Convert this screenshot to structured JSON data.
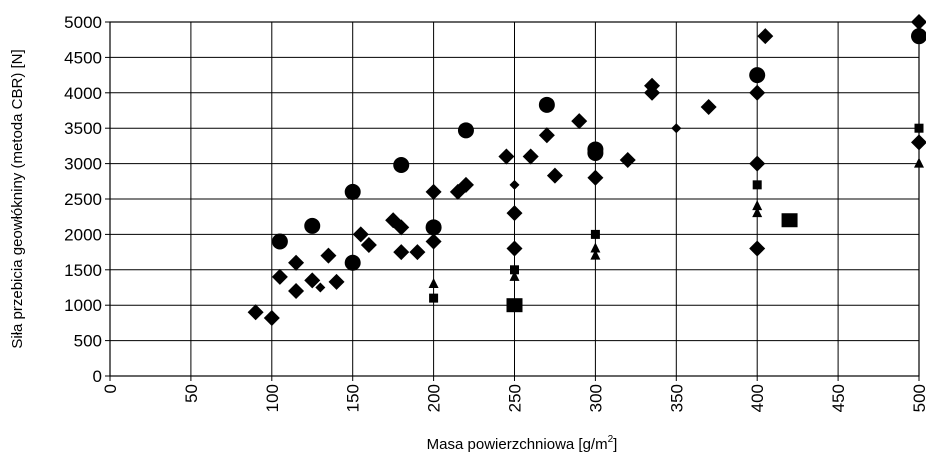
{
  "chart_data": {
    "type": "scatter",
    "title": "",
    "xlabel": "Masa powierzchniowa [g/m",
    "xlabel_sup": "2",
    "xlabel_end": "]",
    "ylabel": "Siła przebicia geowłókniny (metoda CBR) [N]",
    "xlim": [
      0,
      500
    ],
    "ylim": [
      0,
      5000
    ],
    "x_ticks": [
      0,
      50,
      100,
      150,
      200,
      250,
      300,
      350,
      400,
      450,
      500
    ],
    "y_ticks": [
      0,
      500,
      1000,
      1500,
      2000,
      2500,
      3000,
      3500,
      4000,
      4500,
      5000
    ],
    "grid": true,
    "legend": "none",
    "series": [
      {
        "marker": "diamond",
        "points": [
          [
            90,
            900
          ],
          [
            100,
            820
          ],
          [
            105,
            1400
          ],
          [
            115,
            1200
          ],
          [
            115,
            1600
          ],
          [
            125,
            1350
          ],
          [
            135,
            1700
          ],
          [
            140,
            1330
          ],
          [
            155,
            2000
          ],
          [
            160,
            1850
          ],
          [
            175,
            2200
          ],
          [
            180,
            1750
          ],
          [
            180,
            2100
          ],
          [
            190,
            1750
          ],
          [
            200,
            2600
          ],
          [
            200,
            1900
          ],
          [
            215,
            2600
          ],
          [
            220,
            2700
          ],
          [
            245,
            3100
          ],
          [
            250,
            2300
          ],
          [
            250,
            1800
          ],
          [
            260,
            3100
          ],
          [
            270,
            3400
          ],
          [
            275,
            2830
          ],
          [
            290,
            3600
          ],
          [
            300,
            2800
          ],
          [
            320,
            3050
          ],
          [
            335,
            4100
          ],
          [
            335,
            4000
          ],
          [
            370,
            3800
          ],
          [
            400,
            4000
          ],
          [
            400,
            3000
          ],
          [
            400,
            1800
          ],
          [
            405,
            4800
          ],
          [
            500,
            5000
          ],
          [
            500,
            3300
          ]
        ]
      },
      {
        "marker": "small-diamond",
        "points": [
          [
            130,
            1250
          ],
          [
            250,
            2700
          ],
          [
            350,
            3500
          ]
        ]
      },
      {
        "marker": "circle",
        "points": [
          [
            105,
            1900
          ],
          [
            125,
            2120
          ],
          [
            150,
            2600
          ],
          [
            150,
            1600
          ],
          [
            180,
            2980
          ],
          [
            200,
            2100
          ],
          [
            220,
            3470
          ],
          [
            270,
            3830
          ],
          [
            300,
            3200
          ],
          [
            300,
            3150
          ],
          [
            400,
            4250
          ],
          [
            500,
            4800
          ]
        ]
      },
      {
        "marker": "square",
        "points": [
          [
            200,
            1100
          ],
          [
            250,
            1500
          ],
          [
            300,
            2000
          ],
          [
            400,
            2700
          ],
          [
            500,
            3500
          ]
        ]
      },
      {
        "marker": "big-square",
        "points": [
          [
            250,
            1000
          ],
          [
            420,
            2200
          ]
        ]
      },
      {
        "marker": "triangle",
        "points": [
          [
            200,
            1300
          ],
          [
            250,
            1400
          ],
          [
            300,
            1800
          ],
          [
            300,
            1700
          ],
          [
            400,
            2400
          ],
          [
            400,
            2300
          ],
          [
            500,
            3000
          ]
        ]
      }
    ]
  }
}
